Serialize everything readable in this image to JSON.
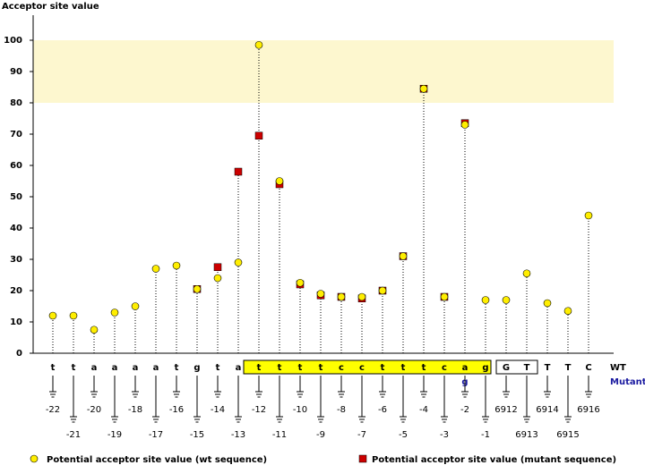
{
  "chart_data": {
    "type": "lollipop",
    "y_axis_label": "Acceptor site value",
    "categories": [
      "-22",
      "-21",
      "-20",
      "-19",
      "-18",
      "-17",
      "-16",
      "-15",
      "-14",
      "-13",
      "-12",
      "-11",
      "-10",
      "-9",
      "-8",
      "-7",
      "-6",
      "-5",
      "-4",
      "-3",
      "-2",
      "-1",
      "6912",
      "6913",
      "6914",
      "6915",
      "6916"
    ],
    "wt_label": "WT",
    "mutant_label": "Mutant",
    "wt_sequence": [
      "t",
      "t",
      "a",
      "a",
      "a",
      "a",
      "t",
      "g",
      "t",
      "a",
      "t",
      "t",
      "t",
      "t",
      "c",
      "c",
      "t",
      "t",
      "t",
      "c",
      "a",
      "g",
      "G",
      "T",
      "T",
      "T",
      "C"
    ],
    "mutant_sequence": [
      null,
      null,
      null,
      null,
      null,
      null,
      null,
      null,
      null,
      null,
      null,
      null,
      null,
      null,
      null,
      null,
      null,
      null,
      null,
      null,
      "g",
      null,
      null,
      null,
      null,
      null,
      null
    ],
    "series": [
      {
        "name": "Potential acceptor site value (wt sequence)",
        "color": "#ffee00",
        "marker": "circle",
        "values": [
          12,
          12,
          7.5,
          13,
          15,
          27,
          28,
          20.5,
          24,
          29,
          98.5,
          55,
          22.5,
          19,
          18,
          18,
          20,
          31,
          84.5,
          18,
          73,
          17,
          17,
          25.5,
          16,
          13.5,
          44
        ]
      },
      {
        "name": "Potential acceptor site value (mutant sequence)",
        "color": "#cc0000",
        "marker": "square",
        "values": [
          null,
          null,
          null,
          null,
          null,
          null,
          null,
          20.5,
          27.5,
          58,
          69.5,
          54,
          22,
          18.5,
          18,
          17.5,
          20,
          31,
          84.5,
          18,
          73.5,
          null,
          null,
          null,
          null,
          null,
          null
        ]
      }
    ],
    "ylim": [
      0,
      108
    ],
    "yticks": [
      0,
      10,
      20,
      30,
      40,
      50,
      60,
      70,
      80,
      90,
      100
    ],
    "highlight_band": [
      80,
      100
    ]
  }
}
